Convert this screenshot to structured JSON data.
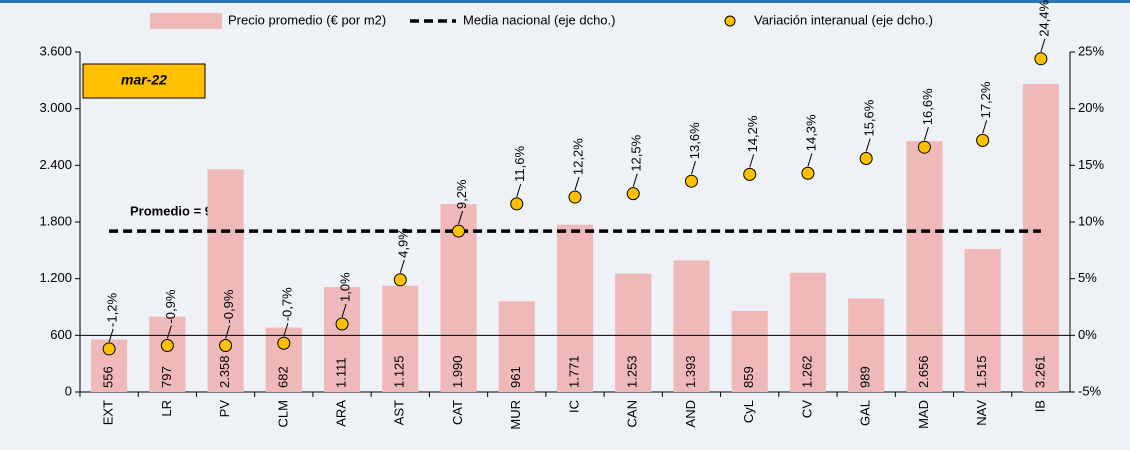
{
  "chart_data": {
    "type": "bar_line_scatter",
    "annotations": {
      "period": "mar-22",
      "average": "Promedio = 9,2%"
    },
    "categories": [
      "EXT",
      "LR",
      "PV",
      "CLM",
      "ARA",
      "AST",
      "CAT",
      "MUR",
      "IC",
      "CAN",
      "AND",
      "CyL",
      "CV",
      "GAL",
      "MAD",
      "NAV",
      "IB"
    ],
    "series": [
      {
        "name": "Precio promedio (€ por m2)",
        "kind": "bar",
        "color": "#efb9b9",
        "values": [
          556,
          797,
          2358,
          682,
          1111,
          1125,
          1990,
          961,
          1771,
          1253,
          1393,
          859,
          1262,
          989,
          2656,
          1515,
          3261
        ],
        "value_labels": [
          "556",
          "797",
          "2.358",
          "682",
          "1.111",
          "1.125",
          "1.990",
          "961",
          "1.771",
          "1.253",
          "1.393",
          "859",
          "1.262",
          "989",
          "2.656",
          "1.515",
          "3.261"
        ]
      },
      {
        "name": "Media nacional (eje dcho.)",
        "kind": "line",
        "color": "#000000",
        "axis": "y2",
        "values": [
          9.2,
          9.2,
          9.2,
          9.2,
          9.2,
          9.2,
          9.2,
          9.2,
          9.2,
          9.2,
          9.2,
          9.2,
          9.2,
          9.2,
          9.2,
          9.2,
          9.2
        ]
      },
      {
        "name": "Variación interanual (eje dcho.)",
        "kind": "scatter",
        "color": "#ffc000",
        "axis": "y2",
        "values": [
          -1.2,
          -0.9,
          -0.9,
          -0.7,
          1.0,
          4.9,
          9.2,
          11.6,
          12.2,
          12.5,
          13.6,
          14.2,
          14.3,
          15.6,
          16.6,
          17.2,
          24.4
        ],
        "value_labels": [
          "-1,2%",
          "-0,9%",
          "-0,9%",
          "-0,7%",
          "1,0%",
          "4,9%",
          "9,2%",
          "11,6%",
          "12,2%",
          "12,5%",
          "13,6%",
          "14,2%",
          "14,3%",
          "15,6%",
          "16,6%",
          "17,2%",
          "24,4%"
        ]
      }
    ],
    "ylim": [
      0,
      3600
    ],
    "yticks": [
      0,
      600,
      {
        "value": 1200,
        "label": "1.200"
      },
      {
        "value": 1800,
        "label": "1.800"
      },
      {
        "value": 2400,
        "label": "2.400"
      },
      {
        "value": 3000,
        "label": "3.000"
      },
      {
        "value": 3600,
        "label": "3.600"
      }
    ],
    "y2lim": [
      -5,
      25
    ],
    "y2ticks": [
      {
        "value": -5,
        "label": "-5%"
      },
      {
        "value": 0,
        "label": "0%"
      },
      {
        "value": 5,
        "label": "5%"
      },
      {
        "value": 10,
        "label": "10%"
      },
      {
        "value": 15,
        "label": "15%"
      },
      {
        "value": 20,
        "label": "20%"
      },
      {
        "value": 25,
        "label": "25%"
      }
    ]
  }
}
